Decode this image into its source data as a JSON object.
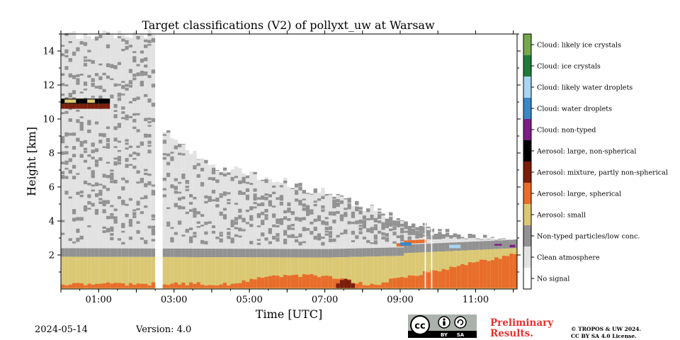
{
  "chart_data": {
    "type": "heatmap",
    "title": "Target classifications (V2) of pollyxt_uw at Warsaw",
    "xlabel": "Time [UTC]",
    "ylabel": "Height [km]",
    "xlim_hours": [
      0.0,
      12.1
    ],
    "ylim_km": [
      0.0,
      15.0
    ],
    "x_tick_labels": [
      "01:00",
      "03:00",
      "05:00",
      "07:00",
      "09:00",
      "11:00"
    ],
    "y_tick_labels": [
      "2",
      "4",
      "6",
      "8",
      "10",
      "12",
      "14"
    ],
    "classes": [
      {
        "label": "Cloud: likely ice crystals",
        "color": "#76a84f"
      },
      {
        "label": "Cloud: ice crystals",
        "color": "#1f7a3c"
      },
      {
        "label": "Cloud: likely water droplets",
        "color": "#a9d4f2"
      },
      {
        "label": "Cloud: water droplets",
        "color": "#3c87c5"
      },
      {
        "label": "Cloud: non-typed",
        "color": "#7b1f83"
      },
      {
        "label": "Aerosol: large, non-spherical",
        "color": "#000000"
      },
      {
        "label": "Aerosol: mixture, partly non-spherical",
        "color": "#7a1e0c"
      },
      {
        "label": "Aerosol: large, spherical",
        "color": "#e86d2b"
      },
      {
        "label": "Aerosol: small",
        "color": "#dbc874"
      },
      {
        "label": "Non-typed particles/low conc.",
        "color": "#929292"
      },
      {
        "label": "Clean atmosphere",
        "color": "#e2e2e2"
      },
      {
        "label": "No signal",
        "color": "#ffffff"
      }
    ]
  },
  "footer": {
    "date": "2024-05-14",
    "version": "Version: 4.0",
    "preliminary": [
      "Preliminary",
      "Results."
    ],
    "license": [
      "© TROPOS & UW 2024.",
      "CC BY SA 4.0 License."
    ],
    "cc_badge": {
      "main": "cc",
      "by": "BY",
      "sa": "SA"
    }
  }
}
